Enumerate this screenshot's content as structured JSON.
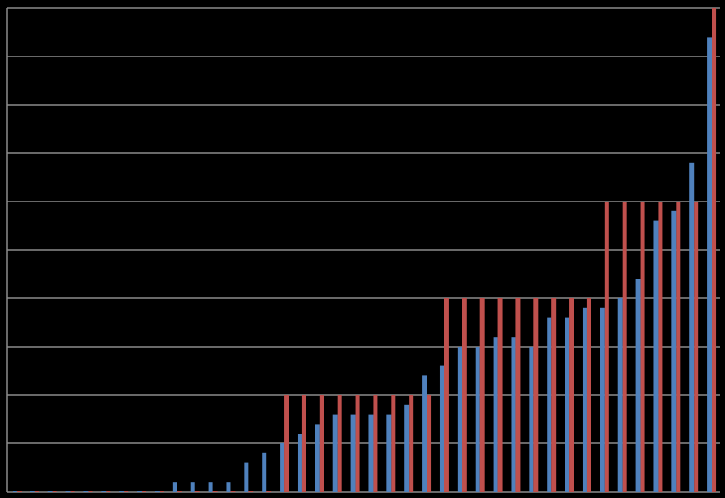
{
  "chart_data": {
    "type": "bar",
    "title": "",
    "xlabel": "",
    "ylabel": "",
    "ylim": [
      0,
      10
    ],
    "grid": true,
    "legend": "none",
    "colors": {
      "background": "#000000",
      "grid": "#8c8c8c",
      "series_a": "#4f81bd",
      "series_b": "#c0504d"
    },
    "series": [
      {
        "values": [
          0,
          0,
          0,
          0,
          0,
          0,
          0,
          0,
          0,
          0.2,
          0.2,
          0.2,
          0.2,
          0.6,
          0.8,
          1.0,
          1.2,
          1.4,
          1.6,
          1.6,
          1.6,
          1.6,
          1.8,
          2.4,
          2.6,
          3.0,
          3.0,
          3.2,
          3.2,
          3.0,
          3.6,
          3.6,
          3.8,
          3.8,
          4.0,
          4.4,
          5.6,
          5.8,
          6.8,
          9.4
        ]
      },
      {
        "values": [
          0,
          0,
          0,
          0,
          0,
          0,
          0,
          0,
          0,
          0,
          0,
          0,
          0,
          0,
          0,
          2,
          2,
          2,
          2,
          2,
          2,
          2,
          2,
          2,
          4,
          4,
          4,
          4,
          4,
          4,
          4,
          4,
          4,
          6,
          6,
          6,
          6,
          6,
          6,
          10
        ]
      }
    ]
  }
}
